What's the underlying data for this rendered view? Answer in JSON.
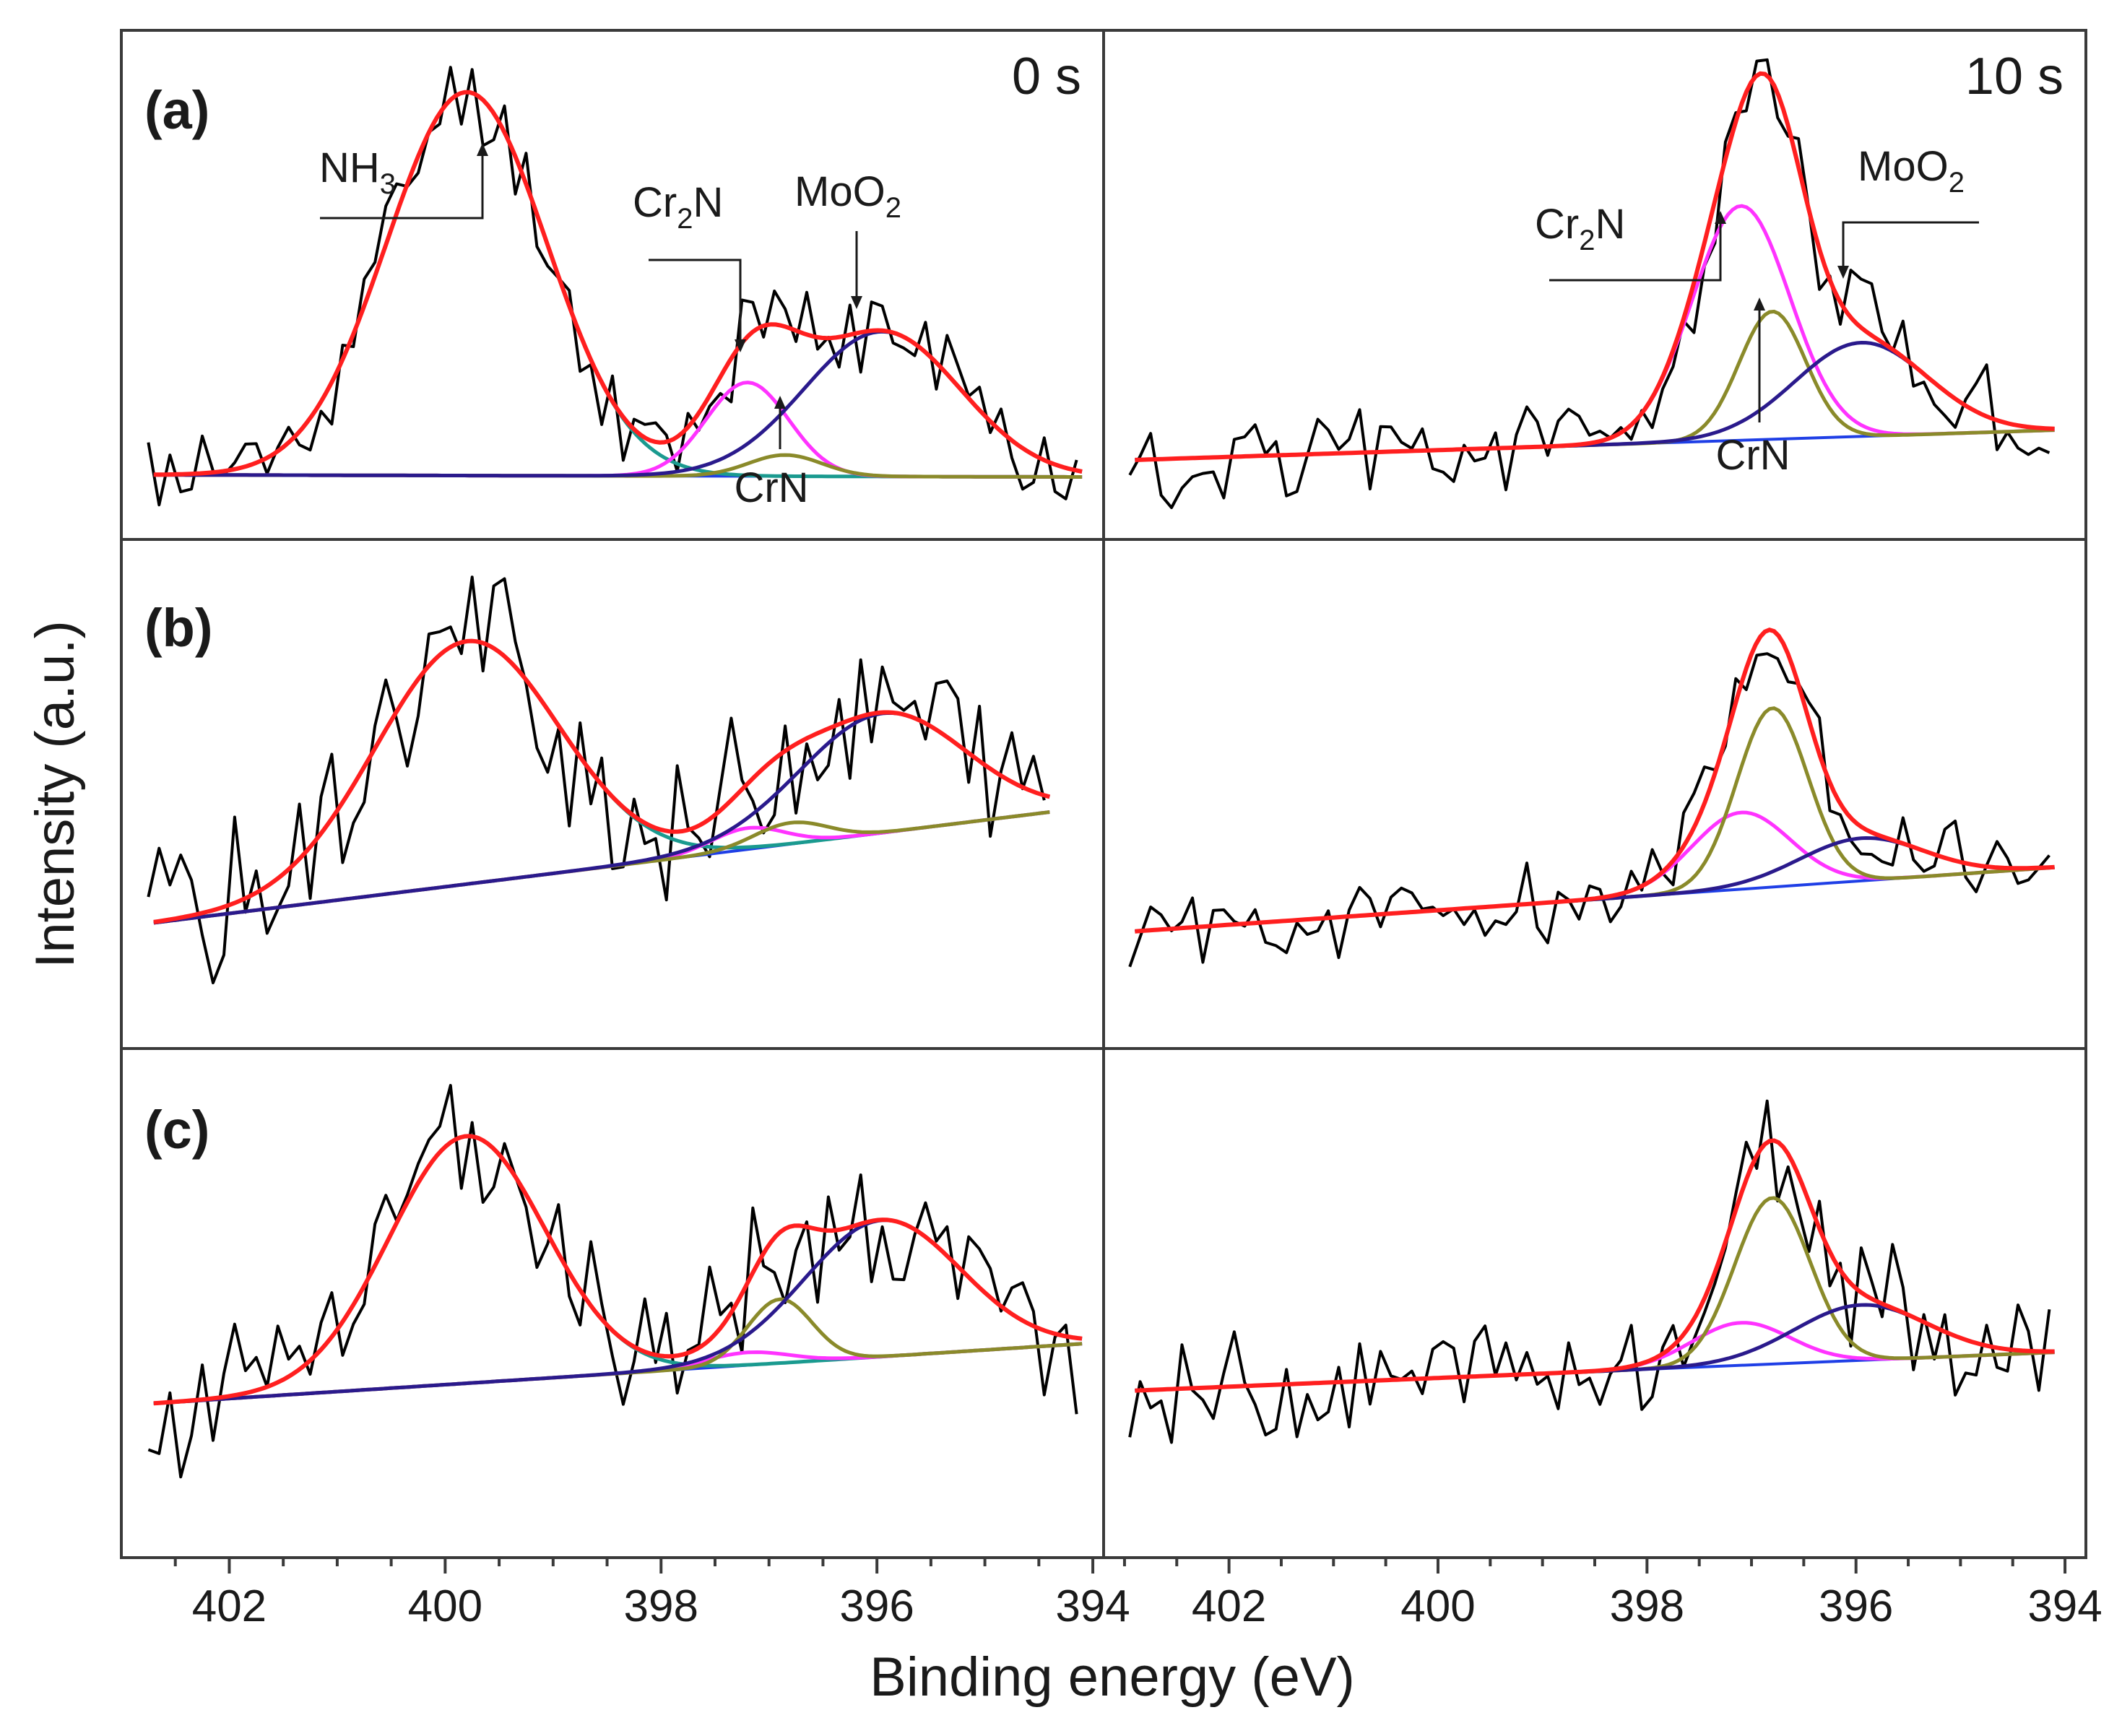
{
  "figure": {
    "ylabel": "Intensity (a.u.)",
    "xlabel": "Binding energy (eV)"
  },
  "colors": {
    "raw": "#000000",
    "envelope": "#ff1f1f",
    "nh3": "#1a9a8f",
    "cr2n": "#ff33ff",
    "crn": "#8a8a2a",
    "moo2": "#2a1a8c",
    "background": "#1f3fe6",
    "frame": "#3a3a3a"
  },
  "labels": {
    "panel_a": "(a)",
    "panel_b": "(b)",
    "panel_c": "(c)",
    "time_0": "0 s",
    "time_10": "10 s",
    "nh3": {
      "main": "NH",
      "sub": "3"
    },
    "cr2n": {
      "pre": "Cr",
      "sub": "2",
      "post": "N"
    },
    "moo2": {
      "main": "MoO",
      "sub": "2"
    },
    "crn": "CrN"
  },
  "chart_data": [
    {
      "type": "line",
      "panel": "a",
      "time": "0 s",
      "title": "(a) 0 s",
      "xlabel": "Binding energy (eV)",
      "ylabel": "Intensity (a.u.)",
      "xlim": [
        403.0,
        393.9
      ],
      "xticks": [
        402,
        400,
        398,
        396,
        394
      ],
      "ylim": [
        0,
        1
      ],
      "baseline": [
        [
          402.7,
          0.055
        ],
        [
          394.1,
          0.05
        ]
      ],
      "components": [
        {
          "name": "NH3",
          "center": 399.8,
          "height": 0.9,
          "fwhm": 1.75
        },
        {
          "name": "Cr2N",
          "center": 397.2,
          "height": 0.22,
          "fwhm": 0.9
        },
        {
          "name": "CrN",
          "center": 396.85,
          "height": 0.05,
          "fwhm": 0.8
        },
        {
          "name": "MoO2",
          "center": 395.95,
          "height": 0.34,
          "fwhm": 1.7
        }
      ],
      "raw_seed": 11,
      "raw_noise": 0.13,
      "annotations": [
        {
          "label": "NH3",
          "x": 399.8
        },
        {
          "label": "Cr2N",
          "x": 397.2
        },
        {
          "label": "MoO2",
          "x": 395.95
        },
        {
          "label": "CrN",
          "x": 396.85
        }
      ]
    },
    {
      "type": "line",
      "panel": "a",
      "time": "10 s",
      "title": "(a) 10 s",
      "xlabel": "Binding energy (eV)",
      "ylabel": "Intensity (a.u.)",
      "xlim": [
        403.2,
        393.8
      ],
      "xticks": [
        402,
        400,
        398,
        396,
        394
      ],
      "ylim": [
        0,
        1
      ],
      "baseline": [
        [
          402.9,
          0.09
        ],
        [
          394.1,
          0.16
        ]
      ],
      "components": [
        {
          "name": "Cr2N",
          "center": 397.1,
          "height": 0.55,
          "fwhm": 1.1
        },
        {
          "name": "CrN",
          "center": 396.8,
          "height": 0.3,
          "fwhm": 0.75
        },
        {
          "name": "MoO2",
          "center": 395.95,
          "height": 0.22,
          "fwhm": 1.5
        }
      ],
      "raw_seed": 27,
      "raw_noise": 0.13,
      "annotations": [
        {
          "label": "Cr2N",
          "x": 397.1
        },
        {
          "label": "MoO2",
          "x": 395.95
        },
        {
          "label": "CrN",
          "x": 396.8
        }
      ]
    },
    {
      "type": "line",
      "panel": "b",
      "time": "0 s",
      "title": "(b)",
      "xlabel": "Binding energy (eV)",
      "ylabel": "Intensity (a.u.)",
      "xlim": [
        403.0,
        393.9
      ],
      "xticks": [
        402,
        400,
        398,
        396,
        394
      ],
      "ylim": [
        0,
        1
      ],
      "baseline": [
        [
          402.7,
          0.19
        ],
        [
          394.4,
          0.45
        ]
      ],
      "components": [
        {
          "name": "NH3",
          "center": 399.8,
          "height": 0.57,
          "fwhm": 2.0
        },
        {
          "name": "Cr2N",
          "center": 397.2,
          "height": 0.05,
          "fwhm": 0.8
        },
        {
          "name": "CrN",
          "center": 396.8,
          "height": 0.05,
          "fwhm": 0.8
        },
        {
          "name": "MoO2",
          "center": 395.95,
          "height": 0.28,
          "fwhm": 1.8
        }
      ],
      "raw_seed": 43,
      "raw_noise": 0.22
    },
    {
      "type": "line",
      "panel": "b",
      "time": "10 s",
      "title": "(b) 10 s",
      "xlabel": "Binding energy (eV)",
      "ylabel": "Intensity (a.u.)",
      "xlim": [
        403.2,
        393.8
      ],
      "xticks": [
        402,
        400,
        398,
        396,
        394
      ],
      "ylim": [
        0,
        1
      ],
      "baseline": [
        [
          402.9,
          0.17
        ],
        [
          394.1,
          0.32
        ]
      ],
      "components": [
        {
          "name": "Cr2N",
          "center": 397.1,
          "height": 0.18,
          "fwhm": 1.1
        },
        {
          "name": "CrN",
          "center": 396.8,
          "height": 0.42,
          "fwhm": 0.8
        },
        {
          "name": "MoO2",
          "center": 395.95,
          "height": 0.1,
          "fwhm": 1.4
        }
      ],
      "raw_seed": 59,
      "raw_noise": 0.11
    },
    {
      "type": "line",
      "panel": "c",
      "time": "0 s",
      "title": "(c)",
      "xlabel": "Binding energy (eV)",
      "ylabel": "Intensity (a.u.)",
      "xlim": [
        403.0,
        393.9
      ],
      "xticks": [
        402,
        400,
        398,
        396,
        394
      ],
      "ylim": [
        0,
        1
      ],
      "baseline": [
        [
          402.7,
          0.24
        ],
        [
          394.1,
          0.38
        ]
      ],
      "components": [
        {
          "name": "NH3",
          "center": 399.8,
          "height": 0.58,
          "fwhm": 1.7
        },
        {
          "name": "Cr2N",
          "center": 397.2,
          "height": 0.03,
          "fwhm": 0.9
        },
        {
          "name": "CrN",
          "center": 396.9,
          "height": 0.15,
          "fwhm": 0.7
        },
        {
          "name": "MoO2",
          "center": 395.95,
          "height": 0.32,
          "fwhm": 1.7
        }
      ],
      "raw_seed": 71,
      "raw_noise": 0.2
    },
    {
      "type": "line",
      "panel": "c",
      "time": "10 s",
      "title": "(c) 10 s",
      "xlabel": "Binding energy (eV)",
      "ylabel": "Intensity (a.u.)",
      "xlim": [
        403.2,
        393.8
      ],
      "xticks": [
        402,
        400,
        398,
        396,
        394
      ],
      "ylim": [
        0,
        1
      ],
      "baseline": [
        [
          402.9,
          0.27
        ],
        [
          394.1,
          0.36
        ]
      ],
      "components": [
        {
          "name": "Cr2N",
          "center": 397.1,
          "height": 0.1,
          "fwhm": 1.1
        },
        {
          "name": "CrN",
          "center": 396.8,
          "height": 0.39,
          "fwhm": 0.85
        },
        {
          "name": "MoO2",
          "center": 395.95,
          "height": 0.13,
          "fwhm": 1.5
        }
      ],
      "raw_seed": 83,
      "raw_noise": 0.16
    }
  ]
}
